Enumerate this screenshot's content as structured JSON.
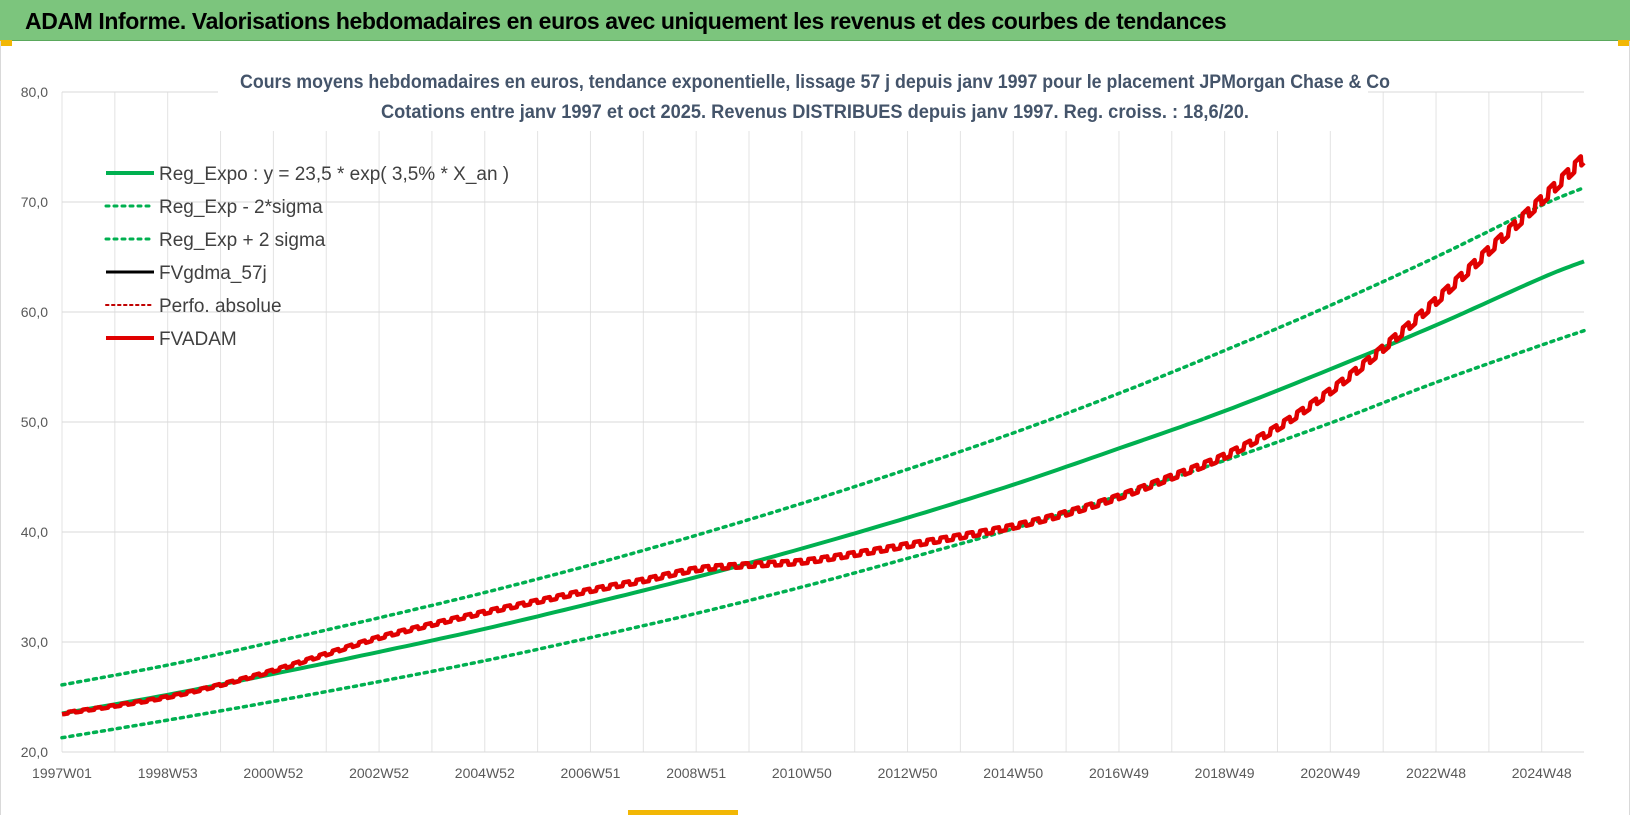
{
  "banner": {
    "title": "ADAM Informe. Valorisations hebdomadaires en euros avec uniquement les revenus et des courbes de tendances"
  },
  "chart_data": {
    "type": "line",
    "title_lines": [
      "Cours moyens hebdomadaires en euros, tendance exponentielle, lissage 57 j depuis janv 1997 pour le placement JPMorgan Chase & Co",
      "Cotations entre janv 1997 et oct 2025. Revenus DISTRIBUES depuis janv 1997.  Reg. croiss. : 18,6/20."
    ],
    "xlabel": "",
    "ylabel": "",
    "ylim": [
      20,
      80
    ],
    "yticks": [
      "20,0",
      "30,0",
      "40,0",
      "50,0",
      "60,0",
      "70,0",
      "80,0"
    ],
    "ytick_values": [
      20,
      30,
      40,
      50,
      60,
      70,
      80
    ],
    "xlim": [
      1997.0,
      2025.8
    ],
    "xticks": [
      "1997W01",
      "1998W53",
      "2000W52",
      "2002W52",
      "2004W52",
      "2006W51",
      "2008W51",
      "2010W50",
      "2012W50",
      "2014W50",
      "2016W49",
      "2018W49",
      "2020W49",
      "2022W48",
      "2024W48"
    ],
    "xtick_values": [
      1997.0,
      1999.0,
      2001.0,
      2003.0,
      2005.0,
      2007.0,
      2009.0,
      2011.0,
      2013.0,
      2015.0,
      2017.0,
      2019.0,
      2021.0,
      2023.0,
      2025.0
    ],
    "grid": true,
    "legend_position": "top-left",
    "legend": [
      {
        "label": "Reg_Expo : y = 23,5 * exp( 3,5% *  X_an )",
        "color": "#00b050",
        "style": "solid",
        "width": 4
      },
      {
        "label": "Reg_Exp - 2*sigma",
        "color": "#00b050",
        "style": "dotted",
        "width": 3
      },
      {
        "label": "Reg_Exp + 2 sigma",
        "color": "#00b050",
        "style": "dotted",
        "width": 3
      },
      {
        "label": "FVgdma_57j",
        "color": "#000000",
        "style": "solid",
        "width": 3
      },
      {
        "label": "Perfo. absolue",
        "color": "#c00000",
        "style": "dotted",
        "width": 2
      },
      {
        "label": "FVADAM",
        "color": "#e00000",
        "style": "solid",
        "width": 4
      }
    ],
    "series": [
      {
        "name": "Reg_Expo",
        "x": [
          1997.0,
          1999.0,
          2001.0,
          2003.0,
          2005.0,
          2007.0,
          2009.0,
          2011.0,
          2013.0,
          2015.0,
          2017.0,
          2019.0,
          2021.0,
          2023.0,
          2025.0,
          2025.8
        ],
        "values": [
          23.5,
          25.2,
          27.1,
          29.1,
          31.2,
          33.5,
          35.9,
          38.5,
          41.3,
          44.3,
          47.6,
          51.0,
          54.8,
          58.8,
          63.1,
          64.6
        ]
      },
      {
        "name": "Reg_Exp - 2*sigma",
        "x": [
          1997.0,
          1999.0,
          2001.0,
          2003.0,
          2005.0,
          2007.0,
          2009.0,
          2011.0,
          2013.0,
          2015.0,
          2017.0,
          2019.0,
          2021.0,
          2023.0,
          2025.0,
          2025.8
        ],
        "values": [
          21.3,
          22.9,
          24.6,
          26.4,
          28.3,
          30.4,
          32.6,
          35.0,
          37.6,
          40.3,
          43.3,
          46.5,
          49.9,
          53.6,
          57.0,
          58.3
        ]
      },
      {
        "name": "Reg_Exp + 2 sigma",
        "x": [
          1997.0,
          1999.0,
          2001.0,
          2003.0,
          2005.0,
          2007.0,
          2009.0,
          2011.0,
          2013.0,
          2015.0,
          2017.0,
          2019.0,
          2021.0,
          2023.0,
          2025.0,
          2025.8
        ],
        "values": [
          26.1,
          27.9,
          30.0,
          32.2,
          34.5,
          37.0,
          39.7,
          42.6,
          45.7,
          49.0,
          52.6,
          56.5,
          60.6,
          65.0,
          69.7,
          71.3
        ]
      },
      {
        "name": "FVADAM",
        "x": [
          1997.0,
          1998.0,
          1999.0,
          2000.0,
          2001.0,
          2002.0,
          2003.0,
          2004.0,
          2005.0,
          2006.0,
          2007.0,
          2008.0,
          2009.0,
          2010.0,
          2011.0,
          2012.0,
          2013.0,
          2014.0,
          2015.0,
          2016.0,
          2017.0,
          2018.0,
          2019.0,
          2020.0,
          2021.0,
          2022.0,
          2023.0,
          2024.0,
          2025.0,
          2025.8
        ],
        "values": [
          23.5,
          24.2,
          25.0,
          26.1,
          27.4,
          28.9,
          30.4,
          31.6,
          32.7,
          33.7,
          34.7,
          35.6,
          36.6,
          37.0,
          37.3,
          38.0,
          38.8,
          39.6,
          40.5,
          41.7,
          43.2,
          45.0,
          46.9,
          49.5,
          52.8,
          56.7,
          61.0,
          65.6,
          70.2,
          74.0
        ]
      }
    ]
  }
}
